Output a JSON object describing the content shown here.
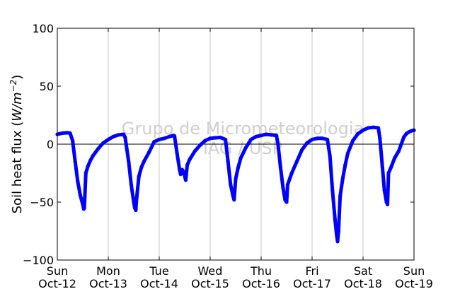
{
  "chart_data": {
    "type": "scatter",
    "ylabel": "Soil heat flux (W/m⁻²)",
    "ylabel_prefix": "Soil heat flux (",
    "ylabel_unit": "W/m",
    "ylabel_exp": "−2",
    "ylabel_suffix": ")",
    "xlabel": "",
    "ylim": [
      -100,
      100
    ],
    "xlim": [
      0,
      7
    ],
    "yticks": [
      {
        "value": 100,
        "label": "100"
      },
      {
        "value": 50,
        "label": "50"
      },
      {
        "value": 0,
        "label": "0"
      },
      {
        "value": -50,
        "label": "−50"
      },
      {
        "value": -100,
        "label": "−100"
      }
    ],
    "xticks": [
      {
        "value": 0,
        "day": "Sun",
        "date": "Oct-12"
      },
      {
        "value": 1,
        "day": "Mon",
        "date": "Oct-13"
      },
      {
        "value": 2,
        "day": "Tue",
        "date": "Oct-14"
      },
      {
        "value": 3,
        "day": "Wed",
        "date": "Oct-15"
      },
      {
        "value": 4,
        "day": "Thu",
        "date": "Oct-16"
      },
      {
        "value": 5,
        "day": "Fri",
        "date": "Oct-17"
      },
      {
        "value": 6,
        "day": "Sat",
        "date": "Oct-18"
      },
      {
        "value": 7,
        "day": "Sun",
        "date": "Oct-19"
      }
    ],
    "grid": "vertical",
    "zero_line": true,
    "watermark": [
      "Grupo de Micrometeorologia",
      "IAG / USP"
    ],
    "series": [
      {
        "color": "#0000ff",
        "marker": "dot",
        "points": [
          [
            0.0,
            8.5
          ],
          [
            0.1,
            9.5
          ],
          [
            0.2,
            9.8
          ],
          [
            0.25,
            9.5
          ],
          [
            0.3,
            3.0
          ],
          [
            0.35,
            -15.0
          ],
          [
            0.4,
            -32.0
          ],
          [
            0.45,
            -44.0
          ],
          [
            0.5,
            -52.0
          ],
          [
            0.52,
            -56.0
          ],
          [
            0.53,
            -55.0
          ],
          [
            0.56,
            -25.0
          ],
          [
            0.6,
            -19.0
          ],
          [
            0.65,
            -14.0
          ],
          [
            0.7,
            -10.0
          ],
          [
            0.8,
            -4.0
          ],
          [
            0.9,
            1.0
          ],
          [
            1.0,
            4.0
          ],
          [
            1.1,
            6.5
          ],
          [
            1.2,
            8.0
          ],
          [
            1.3,
            8.5
          ],
          [
            1.33,
            6.0
          ],
          [
            1.4,
            -15.0
          ],
          [
            1.45,
            -35.0
          ],
          [
            1.5,
            -50.0
          ],
          [
            1.52,
            -55.0
          ],
          [
            1.54,
            -57.0
          ],
          [
            1.55,
            -50.0
          ],
          [
            1.6,
            -28.0
          ],
          [
            1.65,
            -20.0
          ],
          [
            1.7,
            -15.0
          ],
          [
            1.8,
            -7.0
          ],
          [
            1.9,
            2.0
          ],
          [
            2.0,
            4.0
          ],
          [
            2.1,
            5.0
          ],
          [
            2.2,
            6.5
          ],
          [
            2.28,
            7.5
          ],
          [
            2.3,
            7.0
          ],
          [
            2.35,
            -8.0
          ],
          [
            2.4,
            -22.0
          ],
          [
            2.42,
            -26.0
          ],
          [
            2.45,
            -22.0
          ],
          [
            2.48,
            -24.0
          ],
          [
            2.52,
            -31.0
          ],
          [
            2.55,
            -18.0
          ],
          [
            2.6,
            -13.0
          ],
          [
            2.7,
            -6.0
          ],
          [
            2.8,
            -1.0
          ],
          [
            2.9,
            3.0
          ],
          [
            3.0,
            5.0
          ],
          [
            3.1,
            5.5
          ],
          [
            3.2,
            5.8
          ],
          [
            3.3,
            4.0
          ],
          [
            3.35,
            -15.0
          ],
          [
            3.4,
            -35.0
          ],
          [
            3.45,
            -45.0
          ],
          [
            3.47,
            -48.0
          ],
          [
            3.5,
            -30.0
          ],
          [
            3.55,
            -20.0
          ],
          [
            3.6,
            -12.0
          ],
          [
            3.7,
            -3.0
          ],
          [
            3.8,
            4.0
          ],
          [
            3.9,
            6.5
          ],
          [
            4.0,
            7.5
          ],
          [
            4.1,
            8.5
          ],
          [
            4.2,
            8.0
          ],
          [
            4.3,
            7.5
          ],
          [
            4.33,
            0.0
          ],
          [
            4.38,
            -20.0
          ],
          [
            4.43,
            -38.0
          ],
          [
            4.47,
            -48.0
          ],
          [
            4.5,
            -50.0
          ],
          [
            4.52,
            -35.0
          ],
          [
            4.6,
            -25.0
          ],
          [
            4.7,
            -15.0
          ],
          [
            4.8,
            -5.0
          ],
          [
            4.9,
            1.0
          ],
          [
            5.0,
            4.0
          ],
          [
            5.1,
            5.0
          ],
          [
            5.2,
            5.0
          ],
          [
            5.3,
            4.0
          ],
          [
            5.35,
            -10.0
          ],
          [
            5.4,
            -40.0
          ],
          [
            5.45,
            -65.0
          ],
          [
            5.48,
            -78.0
          ],
          [
            5.5,
            -84.0
          ],
          [
            5.52,
            -75.0
          ],
          [
            5.55,
            -45.0
          ],
          [
            5.6,
            -30.0
          ],
          [
            5.65,
            -18.0
          ],
          [
            5.7,
            -8.0
          ],
          [
            5.8,
            3.0
          ],
          [
            5.9,
            9.0
          ],
          [
            6.0,
            12.0
          ],
          [
            6.1,
            14.0
          ],
          [
            6.2,
            14.5
          ],
          [
            6.3,
            14.0
          ],
          [
            6.33,
            5.0
          ],
          [
            6.38,
            -20.0
          ],
          [
            6.42,
            -40.0
          ],
          [
            6.46,
            -50.0
          ],
          [
            6.48,
            -52.0
          ],
          [
            6.5,
            -25.0
          ],
          [
            6.55,
            -20.0
          ],
          [
            6.62,
            -12.0
          ],
          [
            6.7,
            -6.0
          ],
          [
            6.75,
            0.0
          ],
          [
            6.8,
            6.0
          ],
          [
            6.85,
            9.0
          ],
          [
            6.9,
            10.5
          ],
          [
            6.95,
            11.5
          ],
          [
            7.0,
            12.0
          ]
        ]
      }
    ]
  }
}
